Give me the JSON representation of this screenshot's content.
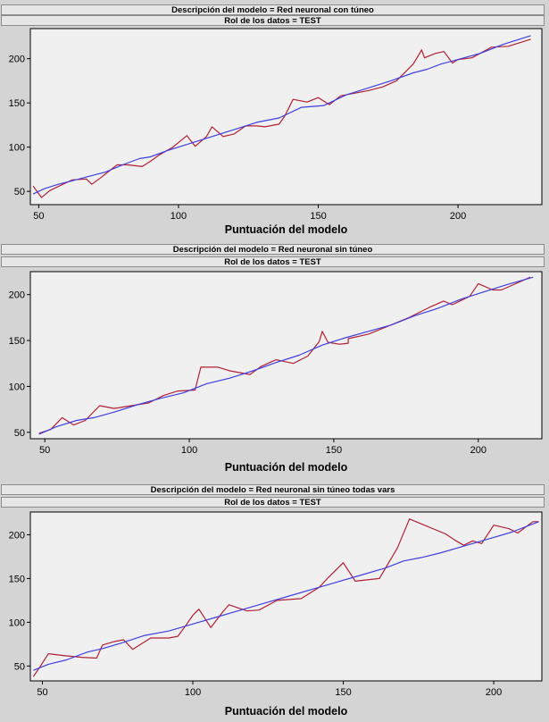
{
  "charts": [
    {
      "header_model": "Descripción del modelo = Red neuronal con túneo",
      "header_role": "Rol de los datos = TEST"
    },
    {
      "header_model": "Descripción del modelo = Red neuronal sin túneo",
      "header_role": "Rol de los datos = TEST"
    },
    {
      "header_model": "Descripción del modelo = Red neuronal sin túneo todas vars",
      "header_role": "Rol de los datos = TEST"
    }
  ],
  "colors": {
    "series_red": "#b22034",
    "series_blue": "#3f3fe0",
    "plot_bg": "#f0f0f0",
    "panel_bg": "#d4d4d4"
  },
  "chart_data": [
    {
      "type": "line",
      "xlabel": "Puntuación del modelo",
      "xlim": [
        47,
        230
      ],
      "ylim": [
        35,
        234
      ],
      "xticks": [
        50,
        100,
        150,
        200
      ],
      "yticks": [
        50,
        100,
        150,
        200
      ],
      "series": [
        {
          "color": "red",
          "x": [
            48,
            51,
            54,
            58,
            62,
            67,
            69,
            72,
            78,
            82,
            87,
            90,
            93,
            98,
            103,
            106,
            110,
            112,
            116,
            120,
            124,
            128,
            131,
            136,
            138,
            141,
            146,
            150,
            154,
            158,
            163,
            168,
            173,
            178,
            184,
            187,
            188,
            192,
            195,
            198,
            200,
            205,
            212,
            218,
            226
          ],
          "y": [
            56,
            43,
            51,
            57,
            63,
            64,
            58,
            65,
            80,
            80,
            78,
            84,
            91,
            100,
            113,
            101,
            112,
            123,
            112,
            115,
            124,
            124,
            123,
            126,
            135,
            154,
            151,
            156,
            148,
            158,
            161,
            164,
            168,
            175,
            194,
            210,
            201,
            206,
            208,
            195,
            199,
            201,
            213,
            214,
            222
          ]
        },
        {
          "color": "blue",
          "x": [
            48,
            52,
            57,
            62,
            68,
            74,
            80,
            86,
            90,
            96,
            104,
            112,
            120,
            128,
            136,
            144,
            152,
            160,
            168,
            176,
            184,
            189,
            194,
            200,
            208,
            216,
            226
          ],
          "y": [
            47,
            53,
            58,
            62,
            67,
            72,
            80,
            87,
            89,
            96,
            104,
            112,
            120,
            128,
            133,
            145,
            147,
            159,
            167,
            175,
            184,
            188,
            194,
            199,
            206,
            216,
            226
          ]
        }
      ]
    },
    {
      "type": "line",
      "xlabel": "Puntuación del modelo",
      "xlim": [
        45,
        222
      ],
      "ylim": [
        43,
        225
      ],
      "xticks": [
        50,
        100,
        150,
        200
      ],
      "yticks": [
        50,
        100,
        150,
        200
      ],
      "series": [
        {
          "color": "red",
          "x": [
            48,
            52,
            56,
            60,
            64,
            69,
            74,
            80,
            86,
            91,
            96,
            102,
            104,
            110,
            114,
            121,
            125,
            130,
            136,
            141,
            145,
            146,
            148,
            152,
            155,
            155,
            162,
            176,
            183,
            188,
            191,
            197,
            200,
            205,
            208,
            218
          ],
          "y": [
            49,
            53,
            66,
            58,
            63,
            79,
            76,
            79,
            82,
            90,
            95,
            96,
            121,
            121,
            117,
            113,
            122,
            129,
            125,
            133,
            149,
            160,
            148,
            146,
            147,
            152,
            157,
            175,
            186,
            193,
            189,
            198,
            212,
            205,
            205,
            219
          ]
        },
        {
          "color": "blue",
          "x": [
            48,
            54,
            61,
            67,
            74,
            82,
            90,
            98,
            106,
            114,
            122,
            130,
            138,
            146,
            154,
            162,
            170,
            178,
            186,
            194,
            202,
            210,
            219
          ],
          "y": [
            48,
            56,
            63,
            66,
            72,
            80,
            87,
            93,
            103,
            109,
            117,
            126,
            134,
            145,
            153,
            160,
            167,
            177,
            185,
            195,
            203,
            211,
            219
          ]
        }
      ]
    },
    {
      "type": "line",
      "xlabel": "Puntuación del modelo",
      "xlim": [
        46,
        216
      ],
      "ylim": [
        33,
        226
      ],
      "xticks": [
        50,
        100,
        150,
        200
      ],
      "yticks": [
        50,
        100,
        150,
        200
      ],
      "series": [
        {
          "color": "red",
          "x": [
            47,
            49,
            52,
            57,
            63,
            68,
            70,
            74,
            77,
            80,
            86,
            92,
            95,
            98,
            100,
            102,
            106,
            110,
            112,
            118,
            122,
            128,
            136,
            142,
            145,
            150,
            154,
            162,
            168,
            172,
            184,
            187,
            190,
            193,
            196,
            200,
            205,
            208,
            213,
            215
          ],
          "y": [
            38,
            48,
            64,
            62,
            60,
            59,
            74,
            78,
            80,
            69,
            82,
            82,
            84,
            98,
            108,
            115,
            94,
            112,
            120,
            113,
            114,
            125,
            127,
            140,
            151,
            168,
            147,
            150,
            185,
            218,
            201,
            194,
            188,
            193,
            190,
            211,
            207,
            202,
            215,
            215
          ]
        },
        {
          "color": "blue",
          "x": [
            47,
            52,
            58,
            65,
            70,
            76,
            84,
            92,
            100,
            108,
            116,
            124,
            132,
            140,
            148,
            156,
            164,
            170,
            176,
            182,
            188,
            194,
            200,
            206,
            215
          ],
          "y": [
            45,
            52,
            57,
            66,
            70,
            76,
            85,
            90,
            98,
            106,
            114,
            122,
            130,
            138,
            146,
            154,
            162,
            170,
            174,
            179,
            185,
            191,
            197,
            203,
            215
          ]
        }
      ]
    }
  ]
}
